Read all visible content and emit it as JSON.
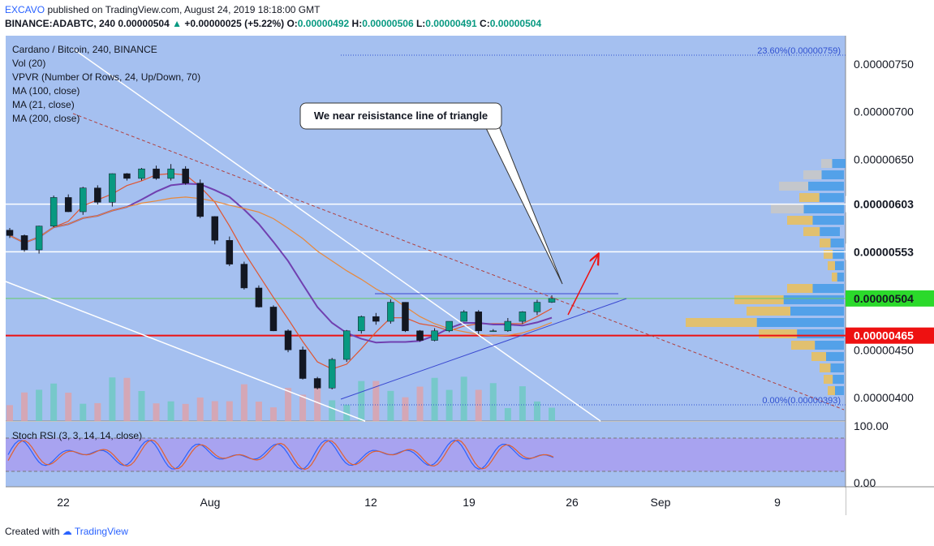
{
  "header": {
    "publisher": "EXCAVO",
    "published_text": "published on TradingView.com, August 24, 2019 18:18:00 GMT",
    "symbol": "BINANCE:ADABTC, 240",
    "last": "0.00000504",
    "change_arrow": "▲",
    "change": "+0.00000025 (+5.22%)",
    "o_label": "O:",
    "o": "0.00000492",
    "h_label": "H:",
    "h": "0.00000506",
    "l_label": "L:",
    "l": "0.00000491",
    "c_label": "C:",
    "c": "0.00000504"
  },
  "legend": {
    "title": "Cardano / Bitcoin, 240, BINANCE",
    "items": [
      "Vol (20)",
      "VPVR (Number Of Rows, 24, Up/Down, 70)",
      "MA (100, close)",
      "MA (21, close)",
      "MA (200, close)"
    ]
  },
  "annotation": "We near reisistance line of triangle",
  "fib": {
    "top": "23.60%(0.00000759)",
    "bottom": "0.00%(0.00000393)"
  },
  "footer": {
    "created_with": "Created with",
    "brand": "TradingView"
  },
  "colors": {
    "bg": "#a5c0f0",
    "up": "#089981",
    "down": "#131722",
    "ma100": "#7040b0",
    "ma21": "#e05530",
    "ma200": "#e8883a",
    "current": "#2bd92b",
    "support": "#ee1111"
  },
  "chart_data": {
    "type": "candlestick",
    "price_axis": {
      "ticks": [
        "0.00000750",
        "0.00000700",
        "0.00000650",
        "0.00000603",
        "0.00000553",
        "0.00000504",
        "0.00000465",
        "0.00000450",
        "0.00000400"
      ],
      "tick_values": [
        7.5e-06,
        7e-06,
        6.5e-06,
        6.03e-06,
        5.53e-06,
        5.04e-06,
        4.65e-06,
        4.5e-06,
        4e-06
      ],
      "current_price": "0.00000504",
      "support_price": "0.00000465"
    },
    "time_axis": {
      "labels": [
        "22",
        "Aug",
        "12",
        "19",
        "26",
        "Sep",
        "9"
      ]
    },
    "stoch_axis": {
      "ticks": [
        "100.00",
        "0.00"
      ]
    },
    "stoch_label": "Stoch RSI (3, 3, 14, 14, close)",
    "horizontal_levels": [
      6.03e-06,
      5.53e-06,
      4.65e-06
    ],
    "approx_closes": [
      5.7e-06,
      5.55e-06,
      5.8e-06,
      6.1e-06,
      5.95e-06,
      6.2e-06,
      6.05e-06,
      6.35e-06,
      6.3e-06,
      6.4e-06,
      6.3e-06,
      6.4e-06,
      6.25e-06,
      5.9e-06,
      5.65e-06,
      5.4e-06,
      5.15e-06,
      4.95e-06,
      4.7e-06,
      4.5e-06,
      4.2e-06,
      4.1e-06,
      4.4e-06,
      4.7e-06,
      4.85e-06,
      4.8e-06,
      5e-06,
      4.7e-06,
      4.6e-06,
      4.7e-06,
      4.8e-06,
      4.9e-06,
      4.7e-06,
      4.7e-06,
      4.8e-06,
      4.9e-06,
      5e-06,
      5.04e-06
    ]
  }
}
